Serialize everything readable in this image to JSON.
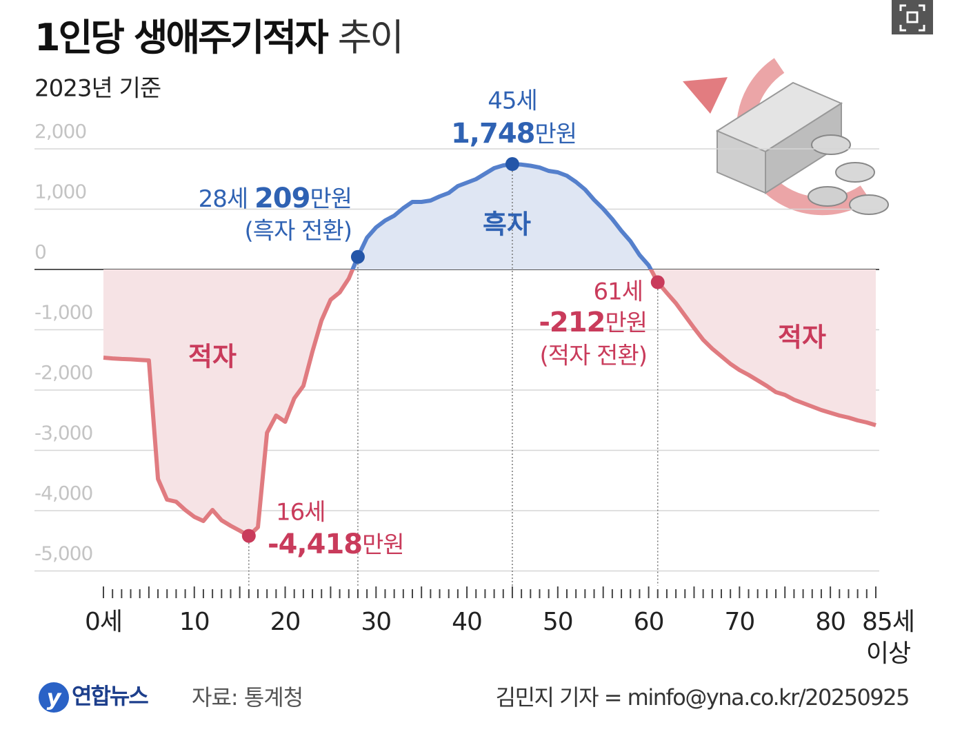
{
  "chart_data": {
    "type": "line",
    "title": "1인당 생애주기적자",
    "title_suffix": "추이",
    "subtitle": "2023년 기준",
    "x": [
      0,
      1,
      2,
      3,
      4,
      5,
      6,
      7,
      8,
      9,
      10,
      11,
      12,
      13,
      14,
      15,
      16,
      17,
      18,
      19,
      20,
      21,
      22,
      23,
      24,
      25,
      26,
      27,
      28,
      29,
      30,
      31,
      32,
      33,
      34,
      35,
      36,
      37,
      38,
      39,
      40,
      41,
      42,
      43,
      44,
      45,
      46,
      47,
      48,
      49,
      50,
      51,
      52,
      53,
      54,
      55,
      56,
      57,
      58,
      59,
      60,
      61,
      62,
      63,
      64,
      65,
      66,
      67,
      68,
      69,
      70,
      71,
      72,
      73,
      74,
      75,
      76,
      77,
      78,
      79,
      80,
      81,
      82,
      83,
      84,
      85
    ],
    "values": [
      -1463,
      -1475,
      -1485,
      -1490,
      -1500,
      -1509,
      -3474,
      -3817,
      -3851,
      -3989,
      -4103,
      -4171,
      -3989,
      -4160,
      -4251,
      -4331,
      -4418,
      -4274,
      -2709,
      -2423,
      -2526,
      -2137,
      -1931,
      -1360,
      -846,
      -503,
      -380,
      -150,
      209,
      526,
      697,
      811,
      891,
      1017,
      1120,
      1120,
      1143,
      1211,
      1269,
      1383,
      1440,
      1497,
      1589,
      1680,
      1726,
      1748,
      1740,
      1720,
      1690,
      1634,
      1611,
      1554,
      1451,
      1326,
      1154,
      1006,
      834,
      640,
      469,
      240,
      69,
      -212,
      -389,
      -560,
      -766,
      -971,
      -1166,
      -1314,
      -1440,
      -1566,
      -1669,
      -1749,
      -1840,
      -1931,
      -2034,
      -2080,
      -2160,
      -2217,
      -2274,
      -2331,
      -2377,
      -2423,
      -2457,
      -2503,
      -2537,
      -2583
    ],
    "value_labels": [
      null,
      null,
      null,
      null,
      null,
      null,
      null,
      null,
      null,
      null,
      null,
      null,
      null,
      null,
      null,
      null,
      "-4,418",
      null,
      null,
      null,
      null,
      null,
      null,
      null,
      null,
      null,
      null,
      null,
      "209",
      null,
      null,
      null,
      null,
      null,
      null,
      null,
      null,
      null,
      null,
      null,
      null,
      null,
      null,
      null,
      null,
      "1,748",
      null,
      null,
      null,
      null,
      null,
      null,
      null,
      null,
      null,
      null,
      null,
      null,
      null,
      null,
      null,
      "-212",
      null,
      null,
      null,
      null,
      null,
      null,
      null,
      null,
      null,
      null,
      null,
      null,
      null,
      null,
      null,
      null,
      null,
      null,
      null,
      null,
      null,
      null,
      null,
      null
    ],
    "color": "#5580cc",
    "negative_color": "#e07b80",
    "xlim": [
      0,
      85
    ],
    "xticks": [
      {
        "value": 0,
        "label": "0세"
      },
      10,
      20,
      30,
      40,
      50,
      60,
      70,
      80,
      {
        "value": 85,
        "label": "85세 이상"
      }
    ],
    "ylim": [
      -5000,
      2000
    ],
    "yticks": [
      {
        "value": 2000,
        "label": "2,000"
      },
      {
        "value": 1000,
        "label": "1,000"
      },
      0,
      {
        "value": -1000,
        "label": "-1,000"
      },
      {
        "value": -2000,
        "label": "-2,000"
      },
      {
        "value": -3000,
        "label": "-3,000"
      },
      {
        "value": -4000,
        "label": "-4,000"
      },
      {
        "value": -5000,
        "label": "-5,000"
      }
    ],
    "grid": true,
    "annotations": [
      {
        "age": "16세",
        "unit": "만원"
      },
      {
        "age": "28세",
        "unit": "만원",
        "note": "(흑자 전환)"
      },
      {
        "age": "45세",
        "unit": "만원"
      },
      {
        "age": "61세",
        "unit": "만원",
        "note": "(적자 전환)"
      }
    ],
    "region_labels": [
      "적자",
      "흑자",
      "적자"
    ],
    "logo": "연합뉴스",
    "source": "자료: 통계청",
    "credit": "김민지 기자 = minfo@yna.co.kr/20250925"
  }
}
